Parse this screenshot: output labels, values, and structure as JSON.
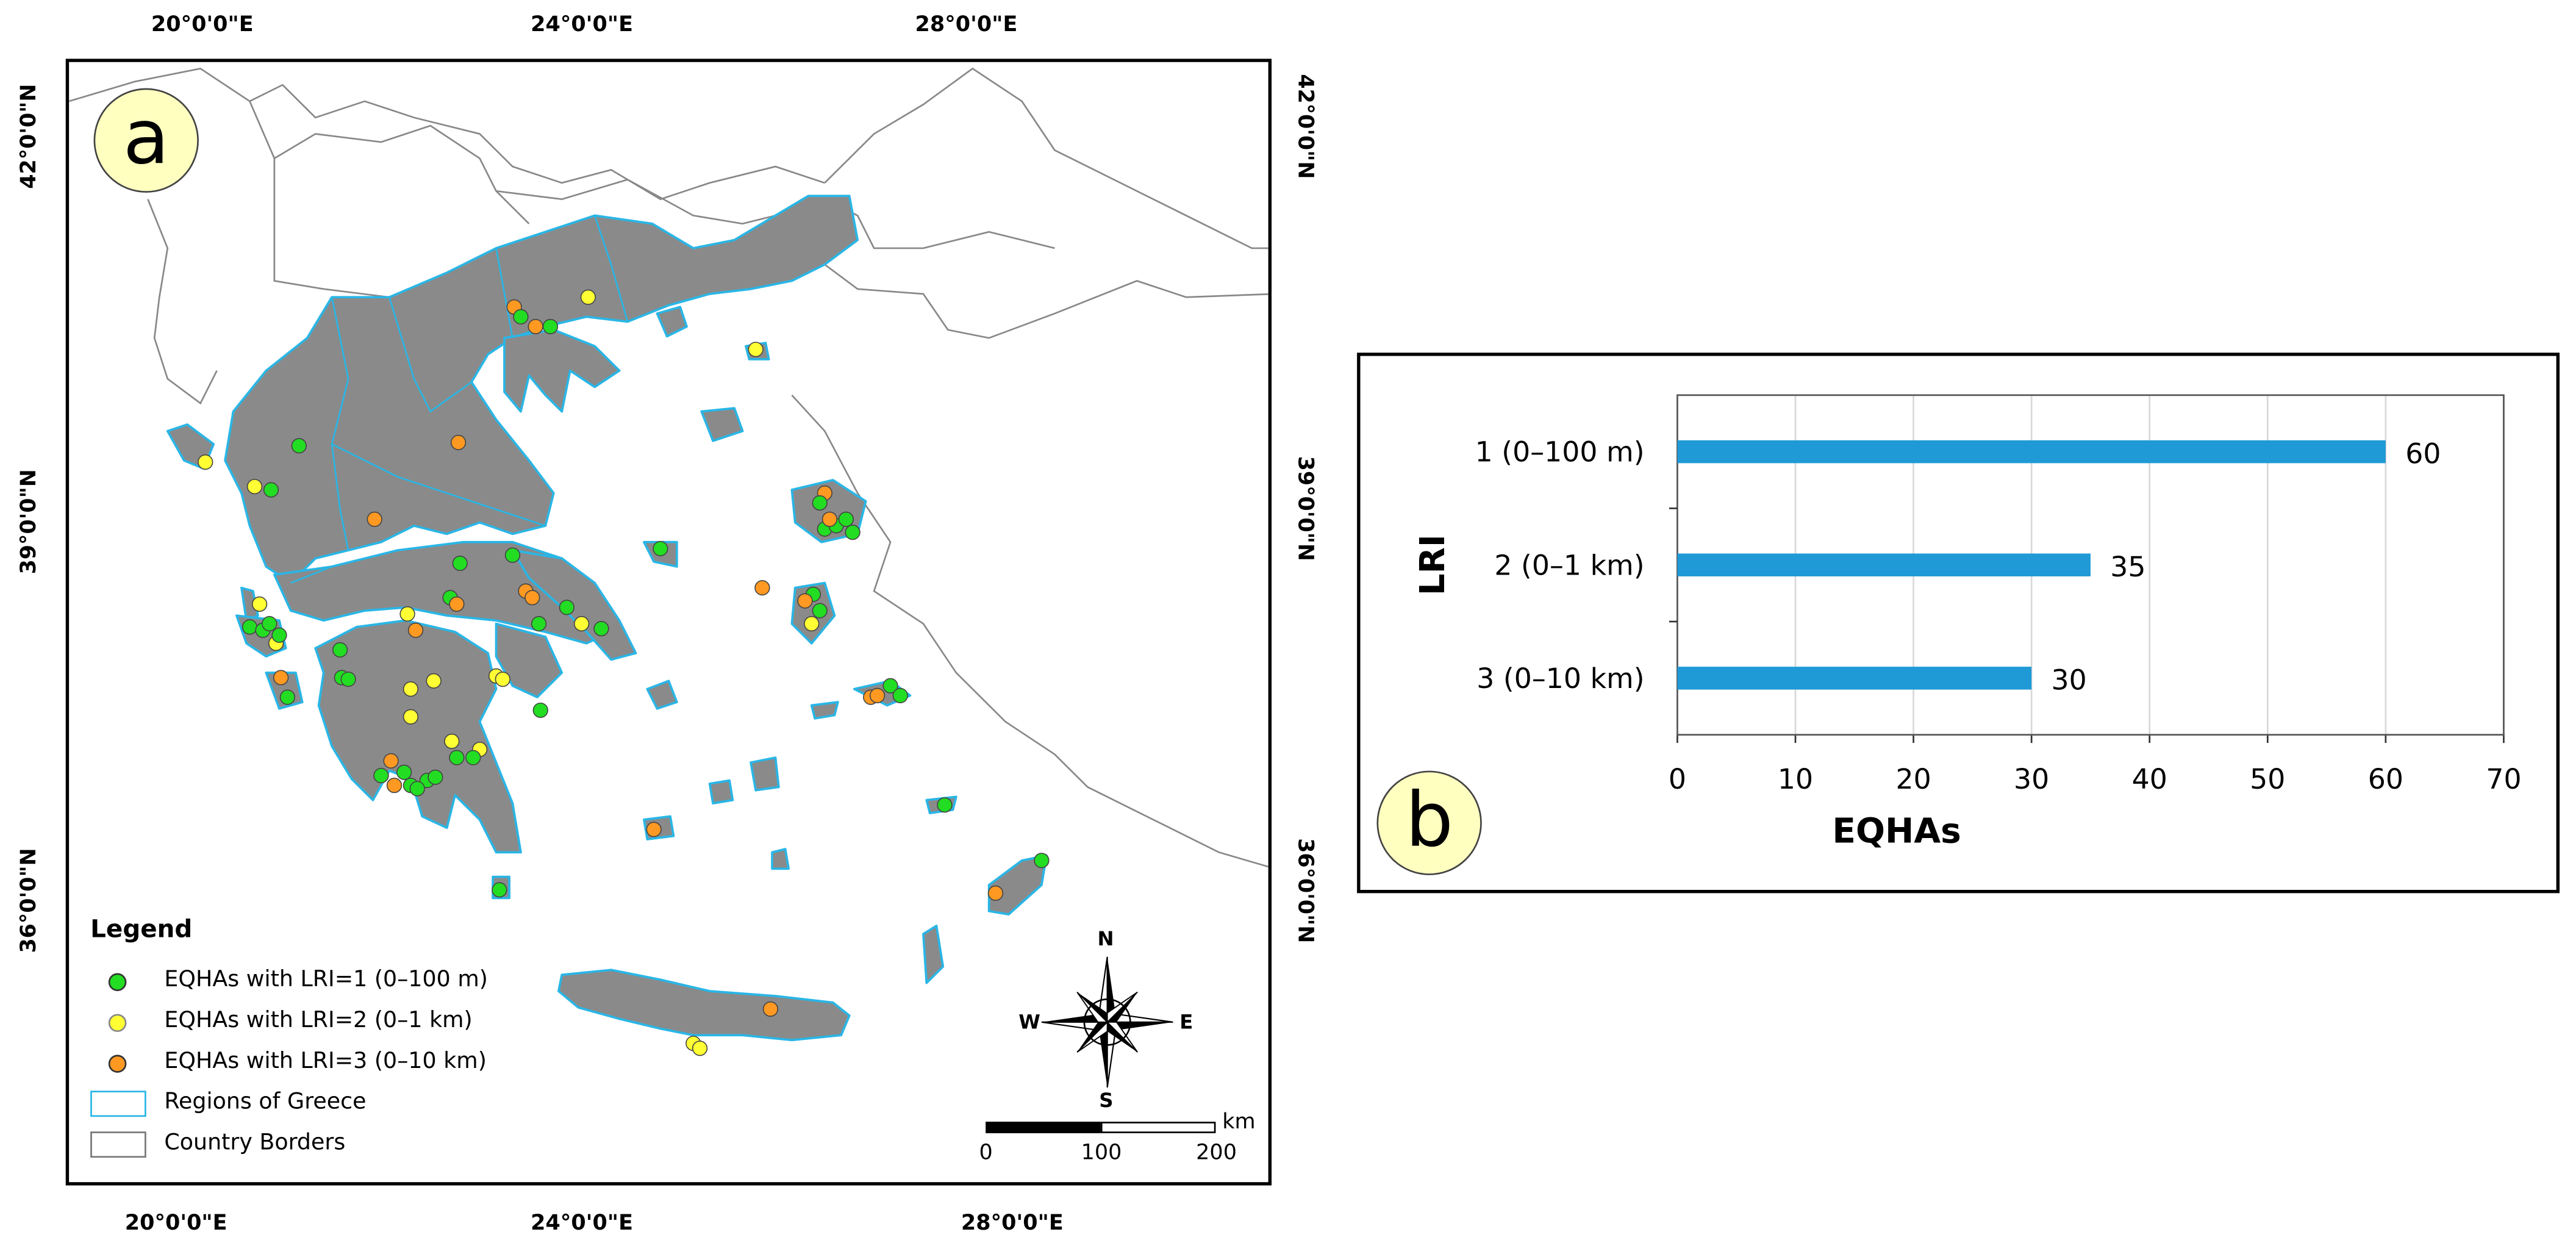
{
  "panel_a": {
    "label": "a",
    "lon_labels": [
      "20°0'0\"E",
      "24°0'0\"E",
      "28°0'0\"E"
    ],
    "lat_labels": [
      "42°0'0\"N",
      "39°0'0\"N",
      "36°0'0\"N"
    ],
    "legend": {
      "title": "Legend",
      "items": [
        {
          "label": "EQHAs with LRI=1 (0–100 m)",
          "color": "#22dd22",
          "symbol": "dot"
        },
        {
          "label": "EQHAs with LRI=2 (0–1 km)",
          "color": "#ffff33",
          "symbol": "dot"
        },
        {
          "label": "EQHAs with LRI=3 (0–10 km)",
          "color": "#ff9922",
          "symbol": "dot"
        },
        {
          "label": "Regions of Greece",
          "color": "#29b6e6",
          "symbol": "box"
        },
        {
          "label": "Country Borders",
          "color": "#777777",
          "symbol": "box"
        }
      ]
    },
    "compass": {
      "n": "N",
      "s": "S",
      "e": "E",
      "w": "W"
    },
    "scalebar": {
      "unit": "km",
      "ticks": [
        "0",
        "100",
        "200"
      ]
    },
    "colors": {
      "land": "#8a8a8a",
      "region_border": "#29b6e6",
      "country_border": "#888888"
    },
    "icons": [
      "north-arrow-compass-icon"
    ]
  },
  "panel_b": {
    "label": "b",
    "chart_data": {
      "type": "bar",
      "orientation": "horizontal",
      "categories": [
        "1 (0–100 m)",
        "2 (0–1 km)",
        "3 (0–10 km)"
      ],
      "values": [
        60,
        35,
        30
      ],
      "data_labels": [
        "60",
        "35",
        "30"
      ],
      "xlabel": "EQHAs",
      "ylabel": "LRI",
      "xlim": [
        0,
        70
      ],
      "xticks": [
        "0",
        "10",
        "20",
        "30",
        "40",
        "50",
        "60",
        "70"
      ],
      "grid": true,
      "bar_color": "#1f9ad6"
    }
  }
}
